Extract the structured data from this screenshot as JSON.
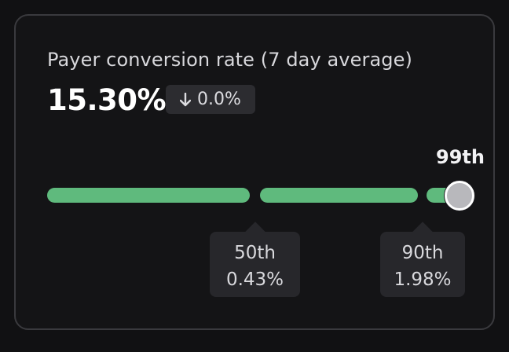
{
  "card": {
    "title": "Payer conversion rate (7 day average)",
    "value": "15.30%",
    "change": {
      "direction": "down",
      "label": "0.0%"
    }
  },
  "percentile_bar": {
    "current_percentile_label": "99th",
    "benchmarks": [
      {
        "rank": "50th",
        "value": "0.43%"
      },
      {
        "rank": "90th",
        "value": "1.98%"
      }
    ]
  },
  "colors": {
    "bar": "#5fba7d",
    "background": "#111113",
    "tooltip": "#27272b"
  },
  "icons": {
    "change": "arrow-down-icon"
  }
}
